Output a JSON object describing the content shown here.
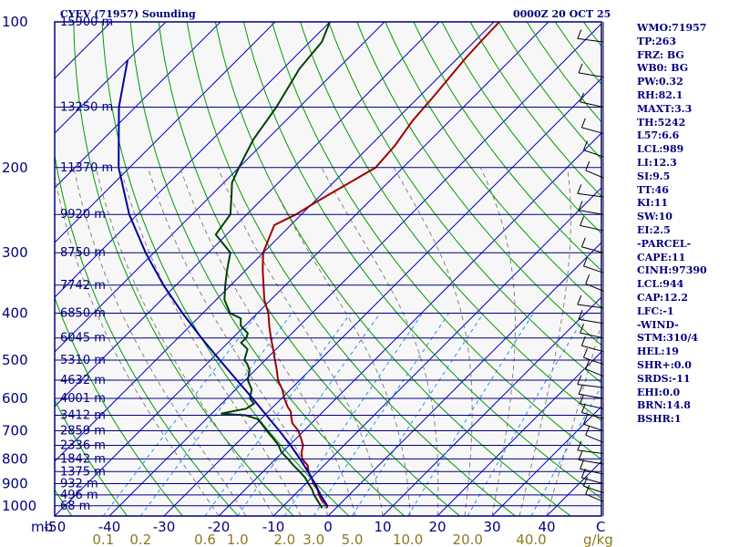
{
  "header": {
    "title": "CYEV (71957) Sounding",
    "datetime": "0000Z 20 OCT 25"
  },
  "stats": [
    "WMO:71957",
    "TP:263",
    "FRZ: BG",
    "WB0: BG",
    "PW:0.32",
    "RH:82.1",
    "MAXT:3.3",
    "TH:5242",
    "L57:6.6",
    "LCL:989",
    "LI:12.3",
    "SI:9.5",
    "TT:46",
    "KI:11",
    "SW:10",
    "EI:2.5",
    "-PARCEL-",
    "CAPE:11",
    "CINH:97390",
    "LCL:944",
    "CAP:12.2",
    "LFC:-1",
    "-WIND-",
    "STM:310/4",
    "HEL:19",
    "SHR+:0.0",
    "SRDS:-11",
    "EHI:0.0",
    "BRN:14.8",
    "BSHR:1"
  ],
  "colors": {
    "isobar": "#000080",
    "isotherm": "#0000cd",
    "dry_adiabat": "#009900",
    "moist_adiabat": "#777777",
    "mixing_ratio": "#1e90ff",
    "temperature": "#a00000",
    "dewpoint": "#004000",
    "parcel": "#0000a0",
    "wind": "#000000",
    "tick_text": "#000080",
    "mixing_text": "#8a7a20"
  },
  "chart_data": {
    "type": "line",
    "title": "CYEV (71957) Sounding",
    "xlabel": "",
    "ylabel": "mb",
    "skew": "skew-T log-P",
    "xlim": [
      -50,
      50
    ],
    "ylim": [
      1050,
      100
    ],
    "y_scale": "log",
    "grid": true,
    "pressure_levels": [
      100,
      200,
      300,
      400,
      500,
      600,
      700,
      800,
      900,
      1000
    ],
    "height_labels": [
      {
        "p": 100,
        "label": "15900 m"
      },
      {
        "p": 150,
        "label": "13250 m"
      },
      {
        "p": 200,
        "label": "11370 m"
      },
      {
        "p": 250,
        "label": "9920 m"
      },
      {
        "p": 300,
        "label": "8750 m"
      },
      {
        "p": 350,
        "label": "7742 m"
      },
      {
        "p": 400,
        "label": "6850 m"
      },
      {
        "p": 450,
        "label": "6045 m"
      },
      {
        "p": 500,
        "label": "5310 m"
      },
      {
        "p": 550,
        "label": "4632 m"
      },
      {
        "p": 600,
        "label": "4001 m"
      },
      {
        "p": 650,
        "label": "3412 m"
      },
      {
        "p": 700,
        "label": "2859 m"
      },
      {
        "p": 750,
        "label": "2336 m"
      },
      {
        "p": 800,
        "label": "1842 m"
      },
      {
        "p": 850,
        "label": "1375 m"
      },
      {
        "p": 900,
        "label": "932 m"
      },
      {
        "p": 950,
        "label": "496 m"
      },
      {
        "p": 1000,
        "label": "68 m"
      }
    ],
    "x_tick_labels": [
      "mb",
      "-50",
      "-40",
      "-30",
      "-20",
      "-10",
      "0",
      "10",
      "20",
      "30",
      "40",
      "C"
    ],
    "x_ticks_temp": [
      -50,
      -40,
      -30,
      -20,
      -10,
      0,
      10,
      20,
      30,
      40
    ],
    "mixing_ratio_labels": [
      "0.1",
      "0.2",
      "0.6",
      "1.0",
      "2.0",
      "3.0",
      "5.0",
      "10.0",
      "20.0",
      "40.0",
      "g/kg"
    ],
    "mixing_ratio_values": [
      0.1,
      0.2,
      0.6,
      1.0,
      2.0,
      3.0,
      5.0,
      10.0,
      20.0,
      40.0
    ],
    "series": [
      {
        "name": "",
        "points": [
          [
            1012,
            -1.7
          ],
          [
            1000,
            -2.0
          ],
          [
            975,
            -4.0
          ],
          [
            950,
            -5.5
          ],
          [
            925,
            -6.8
          ],
          [
            900,
            -8.6
          ],
          [
            875,
            -10.0
          ],
          [
            850,
            -11.7
          ],
          [
            825,
            -13.0
          ],
          [
            800,
            -15.2
          ],
          [
            775,
            -16.5
          ],
          [
            750,
            -17.5
          ],
          [
            725,
            -19.2
          ],
          [
            700,
            -21.0
          ],
          [
            675,
            -23.5
          ],
          [
            650,
            -25.2
          ],
          [
            640,
            -25.8
          ],
          [
            625,
            -27.3
          ],
          [
            600,
            -29.5
          ],
          [
            575,
            -31.5
          ],
          [
            550,
            -34.0
          ],
          [
            525,
            -36.0
          ],
          [
            500,
            -38.2
          ],
          [
            475,
            -40.5
          ],
          [
            450,
            -43.0
          ],
          [
            425,
            -45.5
          ],
          [
            400,
            -48.0
          ],
          [
            375,
            -51.2
          ],
          [
            350,
            -54.0
          ],
          [
            325,
            -57.0
          ],
          [
            300,
            -60.0
          ],
          [
            275,
            -62.0
          ],
          [
            263,
            -63.0
          ],
          [
            250,
            -61.0
          ],
          [
            235,
            -59.5
          ],
          [
            215,
            -57.0
          ],
          [
            200,
            -55.0
          ],
          [
            180,
            -55.5
          ],
          [
            160,
            -56.8
          ],
          [
            140,
            -57.5
          ],
          [
            120,
            -58.5
          ],
          [
            110,
            -58.8
          ],
          [
            100,
            -59.0
          ]
        ]
      },
      {
        "name": "",
        "points": [
          [
            1012,
            -2.5
          ],
          [
            1000,
            -3.2
          ],
          [
            975,
            -4.8
          ],
          [
            950,
            -6.4
          ],
          [
            925,
            -7.8
          ],
          [
            900,
            -9.5
          ],
          [
            875,
            -11.2
          ],
          [
            850,
            -13.3
          ],
          [
            825,
            -15.6
          ],
          [
            800,
            -17.8
          ],
          [
            775,
            -20.2
          ],
          [
            750,
            -22.0
          ],
          [
            725,
            -24.3
          ],
          [
            700,
            -26.8
          ],
          [
            680,
            -28.7
          ],
          [
            662,
            -30.6
          ],
          [
            650,
            -33.5
          ],
          [
            645,
            -38.3
          ],
          [
            640,
            -37.1
          ],
          [
            630,
            -34.6
          ],
          [
            615,
            -34.1
          ],
          [
            600,
            -35.8
          ],
          [
            575,
            -37.1
          ],
          [
            550,
            -39.5
          ],
          [
            525,
            -41.0
          ],
          [
            510,
            -42.5
          ],
          [
            500,
            -43.8
          ],
          [
            475,
            -45.2
          ],
          [
            460,
            -47.6
          ],
          [
            450,
            -47.5
          ],
          [
            440,
            -48.1
          ],
          [
            425,
            -50.7
          ],
          [
            410,
            -52.1
          ],
          [
            400,
            -55.0
          ],
          [
            375,
            -58.5
          ],
          [
            350,
            -61.0
          ],
          [
            325,
            -63.5
          ],
          [
            300,
            -66.0
          ],
          [
            275,
            -72.0
          ],
          [
            250,
            -73.0
          ],
          [
            230,
            -76.0
          ],
          [
            215,
            -78.5
          ],
          [
            200,
            -80.0
          ],
          [
            175,
            -82.5
          ],
          [
            150,
            -84.2
          ],
          [
            125,
            -87.0
          ],
          [
            110,
            -87.8
          ],
          [
            100,
            -90.0
          ]
        ]
      },
      {
        "name": "",
        "points": [
          [
            1000,
            -2.0
          ],
          [
            950,
            -5.2
          ],
          [
            900,
            -8.3
          ],
          [
            850,
            -11.8
          ],
          [
            800,
            -15.6
          ],
          [
            750,
            -19.8
          ],
          [
            700,
            -24.5
          ],
          [
            650,
            -29.7
          ],
          [
            600,
            -35.3
          ],
          [
            550,
            -41.5
          ],
          [
            500,
            -48.3
          ],
          [
            450,
            -55.7
          ],
          [
            400,
            -63.7
          ],
          [
            350,
            -72.3
          ],
          [
            300,
            -81.5
          ],
          [
            250,
            -91.5
          ],
          [
            200,
            -102.0
          ],
          [
            150,
            -113.0
          ],
          [
            120,
            -120.0
          ]
        ]
      }
    ]
  }
}
